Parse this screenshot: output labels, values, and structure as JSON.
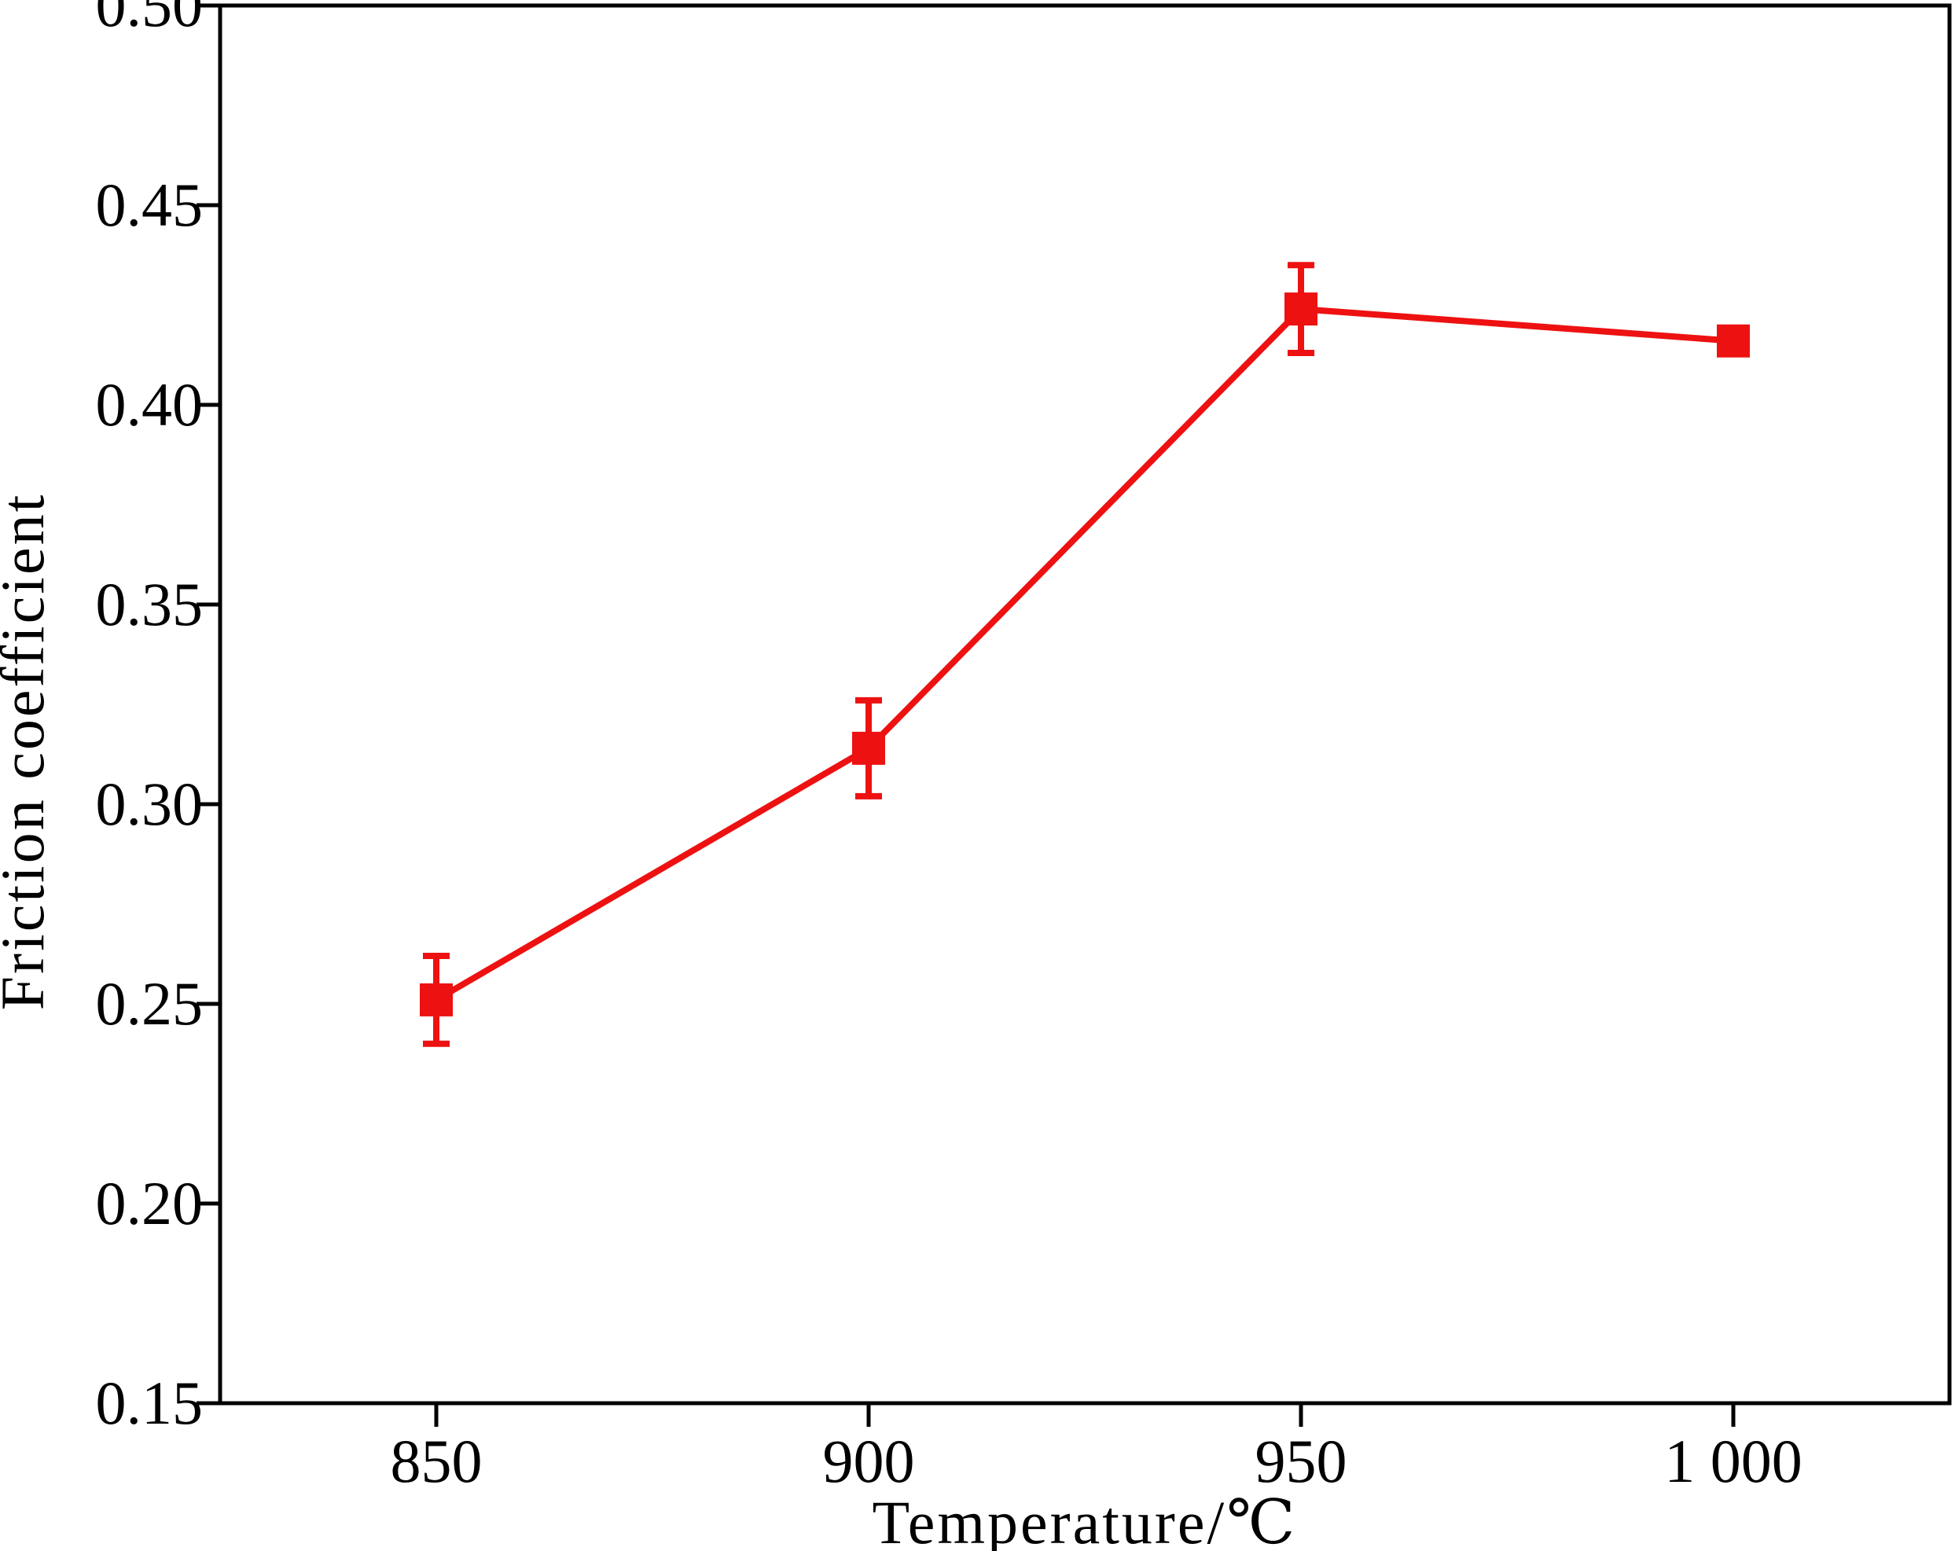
{
  "chart_data": {
    "type": "line",
    "title": "",
    "xlabel": "Temperature/℃",
    "ylabel": "Friction coefficient",
    "x_tick_labels": [
      "850",
      "900",
      "950",
      "1 000"
    ],
    "x_ticks": [
      850,
      900,
      950,
      1000
    ],
    "xlim": [
      825,
      1025
    ],
    "y_tick_labels": [
      "0.15",
      "0.20",
      "0.25",
      "0.30",
      "0.35",
      "0.40",
      "0.45",
      "0.50"
    ],
    "y_ticks": [
      0.15,
      0.2,
      0.25,
      0.3,
      0.35,
      0.4,
      0.45,
      0.5
    ],
    "ylim": [
      0.15,
      0.5
    ],
    "grid": false,
    "legend": "none",
    "series": [
      {
        "x": [
          850,
          900,
          950,
          1000
        ],
        "values": [
          0.251,
          0.314,
          0.424,
          0.416
        ],
        "error": [
          0.011,
          0.012,
          0.011,
          0.003
        ],
        "color": "#ee1111",
        "marker": "square"
      }
    ]
  }
}
